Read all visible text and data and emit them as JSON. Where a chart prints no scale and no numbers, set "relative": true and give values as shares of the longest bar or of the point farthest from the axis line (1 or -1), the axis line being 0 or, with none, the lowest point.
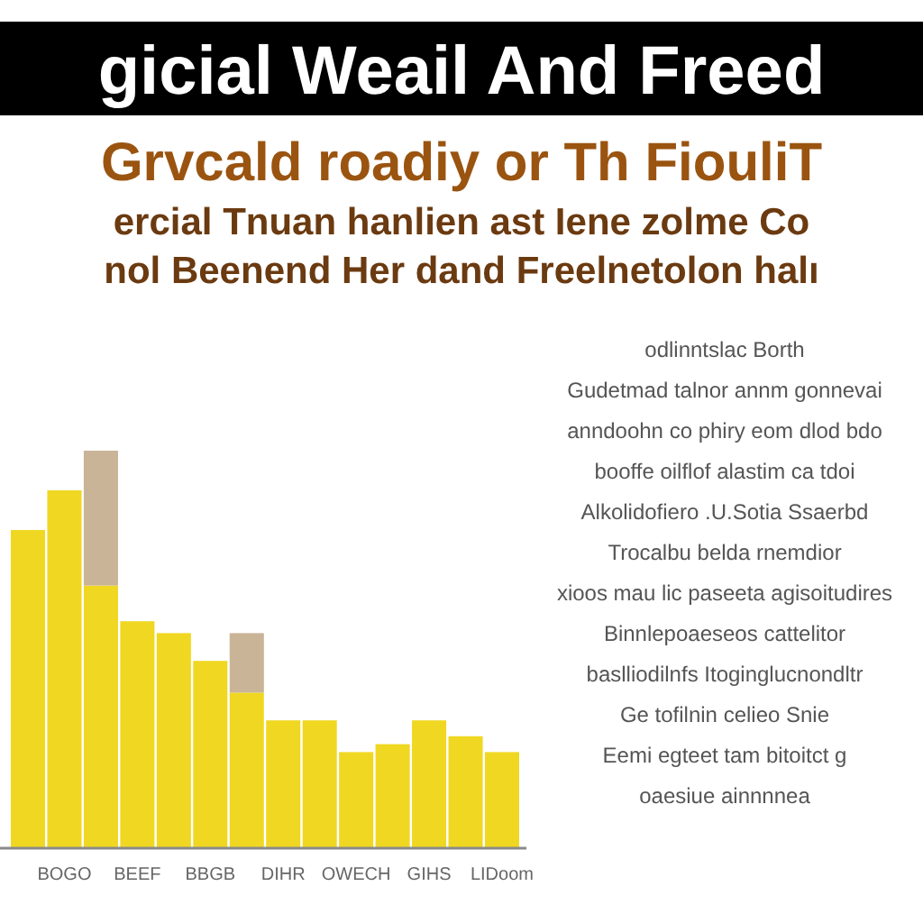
{
  "chart_data": {
    "type": "bar",
    "title": "gicial Weail And Freed",
    "subtitle": "Grvcald roadiy or Th FiouliT",
    "annotations": [
      "ercial Tnuan hanlien ast Iene zolme Co",
      "nol Beenend Her dand Freelnetolon halı",
      "odlinntslac Borth",
      "Gudetmad talnor annm gonnevai",
      "anndoohn co phiry eom dlod bdo",
      "booffe oilflof alastim ca tdoi",
      "Alkolidofiero .U.Sotia Ssaerbd",
      "Trocalbu belda rnemdior",
      "xioos mau lic paseeta agisoitudires",
      "Binnlepoaeseos cattelitor",
      "baslliodilnfs Itoginglucnondltr",
      "Ge tofilnin celieo Snie",
      "Eemi egteet tam bitoitct g",
      "oaesiue ainnnnea"
    ],
    "categories": [
      null,
      "BOGO",
      null,
      "BEEF",
      null,
      "BBGB",
      null,
      "DIHR",
      null,
      "OWECH",
      null,
      "GIHS",
      null,
      "LIDoom"
    ],
    "series": [
      {
        "color": "#f0d722",
        "values": [
          0.8,
          0.9,
          0.66,
          0.57,
          0.54,
          0.47,
          0.39,
          0.32,
          0.32,
          0.24,
          0.26,
          0.32,
          0.28,
          0.24
        ]
      },
      {
        "color": "#c9b497",
        "values": [
          null,
          null,
          0.34,
          null,
          null,
          null,
          0.15,
          null,
          null,
          null,
          null,
          null,
          null,
          null
        ]
      }
    ],
    "stacked": true,
    "relative": true
  }
}
